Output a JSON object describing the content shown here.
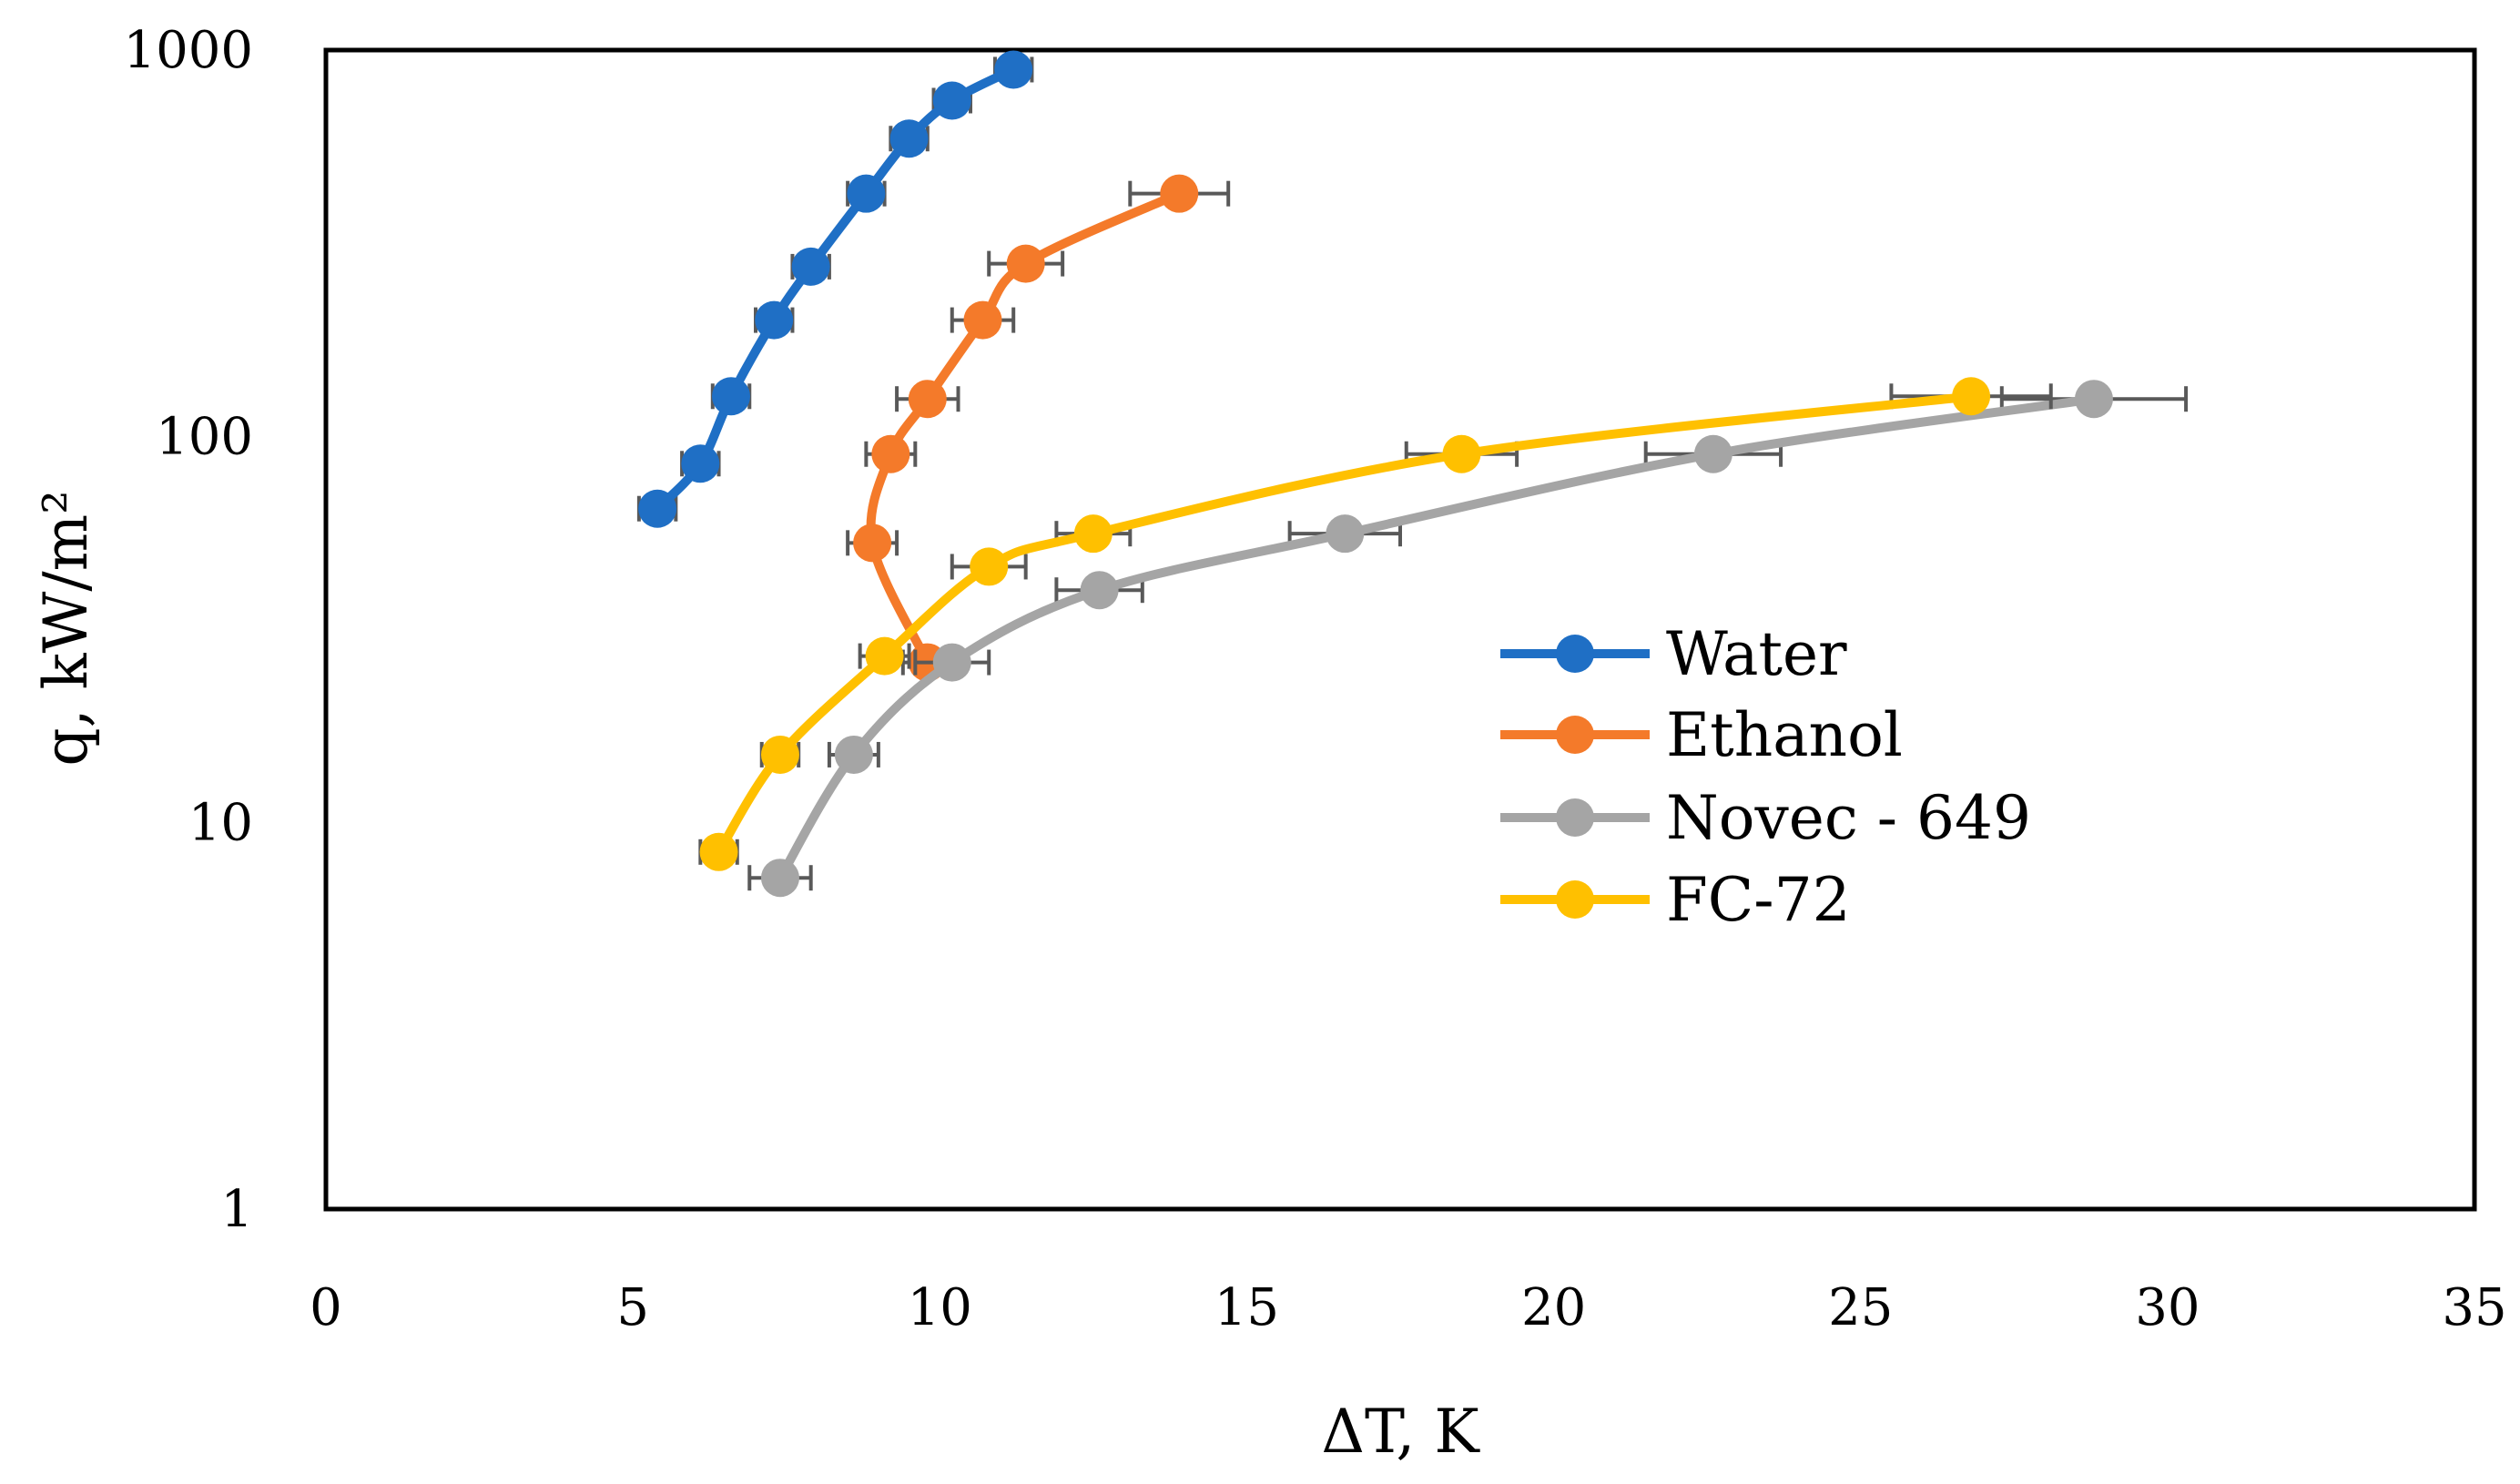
{
  "chart_data": {
    "type": "scatter",
    "title": "",
    "xlabel": "ΔT, K",
    "ylabel": "q, kW/m²",
    "xlim": [
      0,
      35
    ],
    "ylim": [
      1,
      1000
    ],
    "yscale": "log",
    "xticks": [
      0,
      5,
      10,
      15,
      20,
      25,
      30,
      35
    ],
    "yticks": [
      1,
      10,
      100,
      1000
    ],
    "grid": false,
    "legend_position": "center-right",
    "series": [
      {
        "name": "Water",
        "color": "#1F6FC5",
        "x": [
          5.4,
          6.1,
          6.6,
          7.3,
          7.9,
          8.8,
          9.5,
          10.2,
          11.2
        ],
        "y": [
          65,
          85,
          127,
          200,
          275,
          425,
          590,
          740,
          890
        ],
        "xerr": 0.3
      },
      {
        "name": "Ethanol",
        "color": "#F47A2A",
        "x": [
          9.8,
          8.9,
          9.2,
          9.8,
          10.7,
          11.4,
          13.9
        ],
        "y": [
          26,
          53,
          90,
          125,
          200,
          280,
          425
        ],
        "xerr": [
          0.4,
          0.4,
          0.4,
          0.5,
          0.5,
          0.6,
          0.8
        ]
      },
      {
        "name": "Novec - 649",
        "color": "#A5A5A5",
        "x": [
          7.4,
          8.6,
          10.2,
          12.6,
          16.6,
          22.6,
          28.8
        ],
        "y": [
          7.2,
          15,
          26,
          40,
          56,
          90,
          125
        ],
        "xerr": [
          0.5,
          0.4,
          0.6,
          0.7,
          0.9,
          1.1,
          1.5
        ]
      },
      {
        "name": "FC-72",
        "color": "#FFC000",
        "x": [
          6.4,
          7.4,
          9.1,
          10.8,
          12.5,
          18.5,
          26.8
        ],
        "y": [
          8.4,
          15,
          27,
          46,
          56,
          90,
          127
        ],
        "xerr": [
          0.3,
          0.3,
          0.4,
          0.6,
          0.6,
          0.9,
          1.3
        ]
      }
    ]
  }
}
